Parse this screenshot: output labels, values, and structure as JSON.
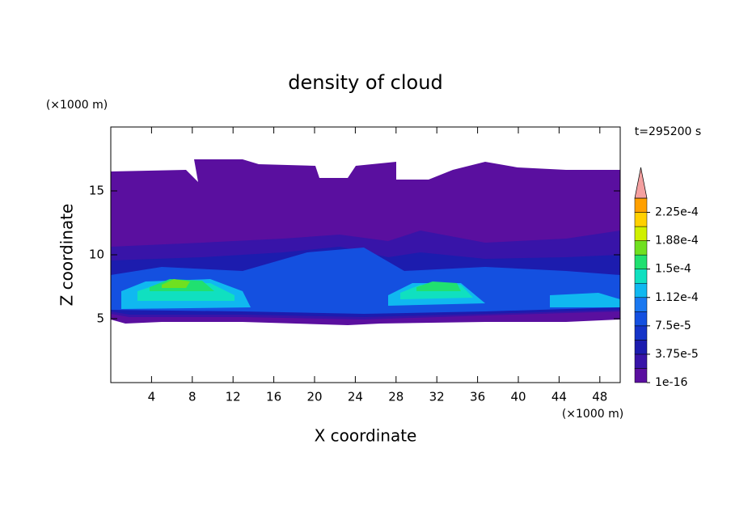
{
  "chart_data": {
    "type": "contour",
    "title": "density of cloud",
    "x_label": "X coordinate",
    "y_label": "Z coordinate",
    "x_unit": "(×1000 m)",
    "y_unit": "(×1000 m)",
    "annotation": "t=295200 s",
    "xlim": [
      0,
      50
    ],
    "ylim": [
      0,
      20
    ],
    "xticks": [
      4,
      8,
      12,
      16,
      20,
      24,
      28,
      32,
      36,
      40,
      44,
      48
    ],
    "yticks": [
      5,
      10,
      15
    ],
    "colorbar": {
      "lim": [
        1e-16,
        0.00024375
      ],
      "ticks": [
        {
          "value": 1e-16,
          "label": "1e-16"
        },
        {
          "value": 3.75e-05,
          "label": "3.75e-5"
        },
        {
          "value": 7.5e-05,
          "label": "7.5e-5"
        },
        {
          "value": 0.0001125,
          "label": "1.12e-4"
        },
        {
          "value": 0.00015,
          "label": "1.5e-4"
        },
        {
          "value": 0.0001875,
          "label": "1.88e-4"
        },
        {
          "value": 0.000225,
          "label": "2.25e-4"
        }
      ],
      "colors": [
        "#5a0f9f",
        "#3814a8",
        "#1c1cae",
        "#1534c8",
        "#1450e0",
        "#1a78f0",
        "#10b8f0",
        "#10e0c0",
        "#20e070",
        "#70e020",
        "#d0f000",
        "#ffd000",
        "#ffa000",
        "#ff7000",
        "#ff3000",
        "#e00000"
      ],
      "extend_color": "#f4a0a0"
    }
  }
}
